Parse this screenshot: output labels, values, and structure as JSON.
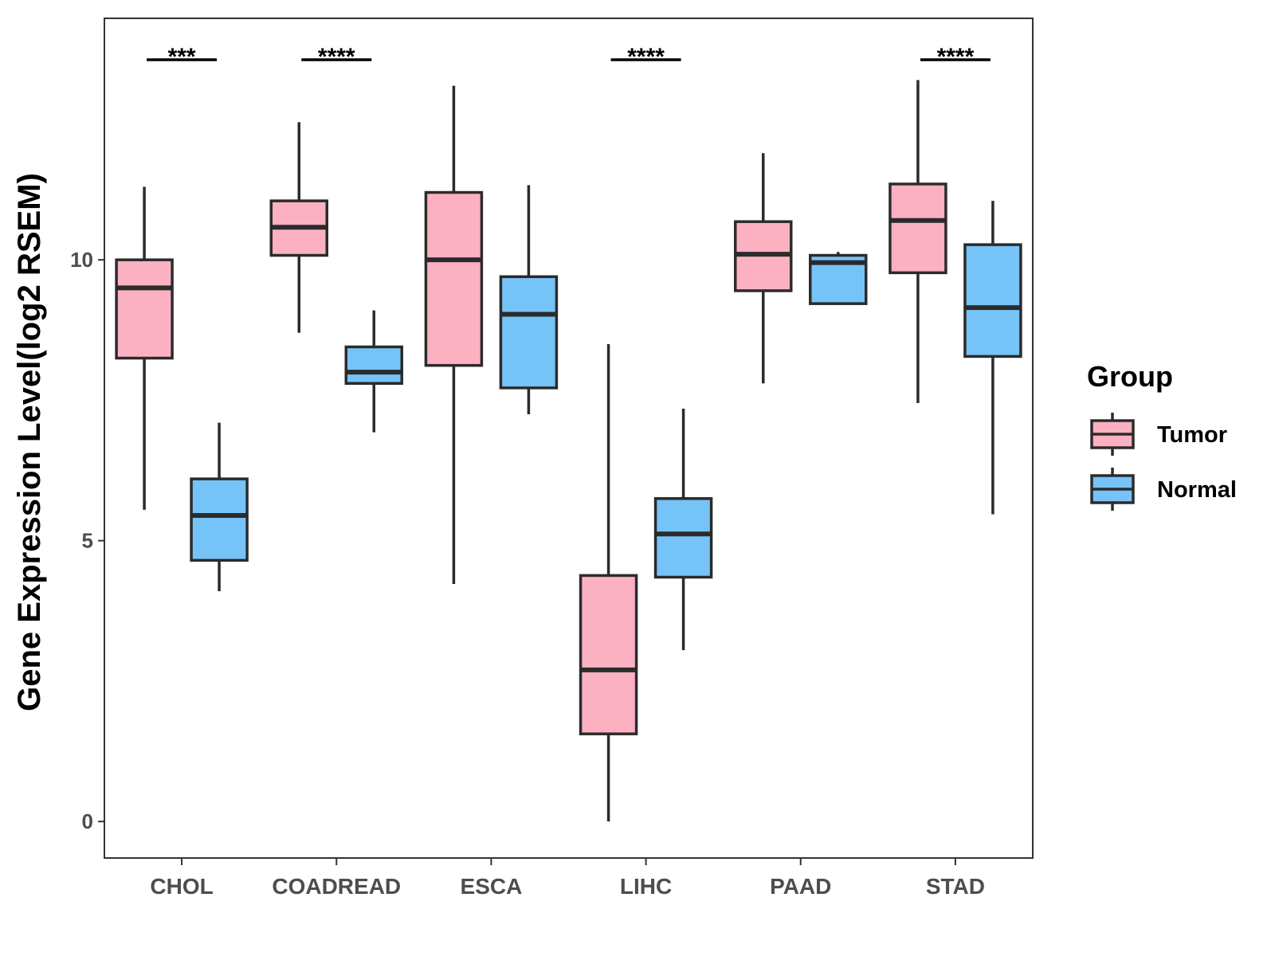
{
  "chart_data": {
    "type": "box",
    "title": "",
    "xlabel": "",
    "ylabel": "Gene Expression Level(log2 RSEM)",
    "ylim": [
      -0.65,
      14.3
    ],
    "yticks": [
      0,
      5,
      10
    ],
    "categories": [
      "CHOL",
      "COADREAD",
      "ESCA",
      "LIHC",
      "PAAD",
      "STAD"
    ],
    "legend": {
      "title": "Group",
      "position": "right",
      "entries": [
        {
          "name": "Tumor",
          "color": "#FBB1C2"
        },
        {
          "name": "Normal",
          "color": "#76C3F8"
        }
      ]
    },
    "series": [
      {
        "name": "Tumor",
        "color": "#FBB1C2",
        "boxes": [
          {
            "category": "CHOL",
            "min": 5.55,
            "q1": 8.25,
            "median": 9.5,
            "q3": 10.0,
            "max": 11.3
          },
          {
            "category": "COADREAD",
            "min": 8.7,
            "q1": 10.08,
            "median": 10.58,
            "q3": 11.05,
            "max": 12.45
          },
          {
            "category": "ESCA",
            "min": 4.23,
            "q1": 8.12,
            "median": 10.0,
            "q3": 11.2,
            "max": 13.1
          },
          {
            "category": "LIHC",
            "min": 0.0,
            "q1": 1.56,
            "median": 2.7,
            "q3": 4.38,
            "max": 8.5
          },
          {
            "category": "PAAD",
            "min": 7.8,
            "q1": 9.45,
            "median": 10.1,
            "q3": 10.68,
            "max": 11.9
          },
          {
            "category": "STAD",
            "min": 7.45,
            "q1": 9.77,
            "median": 10.7,
            "q3": 11.35,
            "max": 13.2
          }
        ]
      },
      {
        "name": "Normal",
        "color": "#76C3F8",
        "boxes": [
          {
            "category": "CHOL",
            "min": 4.1,
            "q1": 4.65,
            "median": 5.45,
            "q3": 6.1,
            "max": 7.1
          },
          {
            "category": "COADREAD",
            "min": 6.93,
            "q1": 7.8,
            "median": 8.0,
            "q3": 8.45,
            "max": 9.1
          },
          {
            "category": "ESCA",
            "min": 7.25,
            "q1": 7.72,
            "median": 9.03,
            "q3": 9.7,
            "max": 11.33
          },
          {
            "category": "LIHC",
            "min": 3.05,
            "q1": 4.35,
            "median": 5.12,
            "q3": 5.75,
            "max": 7.35
          },
          {
            "category": "PAAD",
            "min": 9.22,
            "q1": 9.22,
            "median": 9.95,
            "q3": 10.08,
            "max": 10.14
          },
          {
            "category": "STAD",
            "min": 5.47,
            "q1": 8.28,
            "median": 9.15,
            "q3": 10.27,
            "max": 11.05
          }
        ]
      }
    ],
    "annotations": [
      {
        "category": "CHOL",
        "label": "***"
      },
      {
        "category": "COADREAD",
        "label": "****"
      },
      {
        "category": "LIHC",
        "label": "****"
      },
      {
        "category": "STAD",
        "label": "****"
      }
    ]
  }
}
